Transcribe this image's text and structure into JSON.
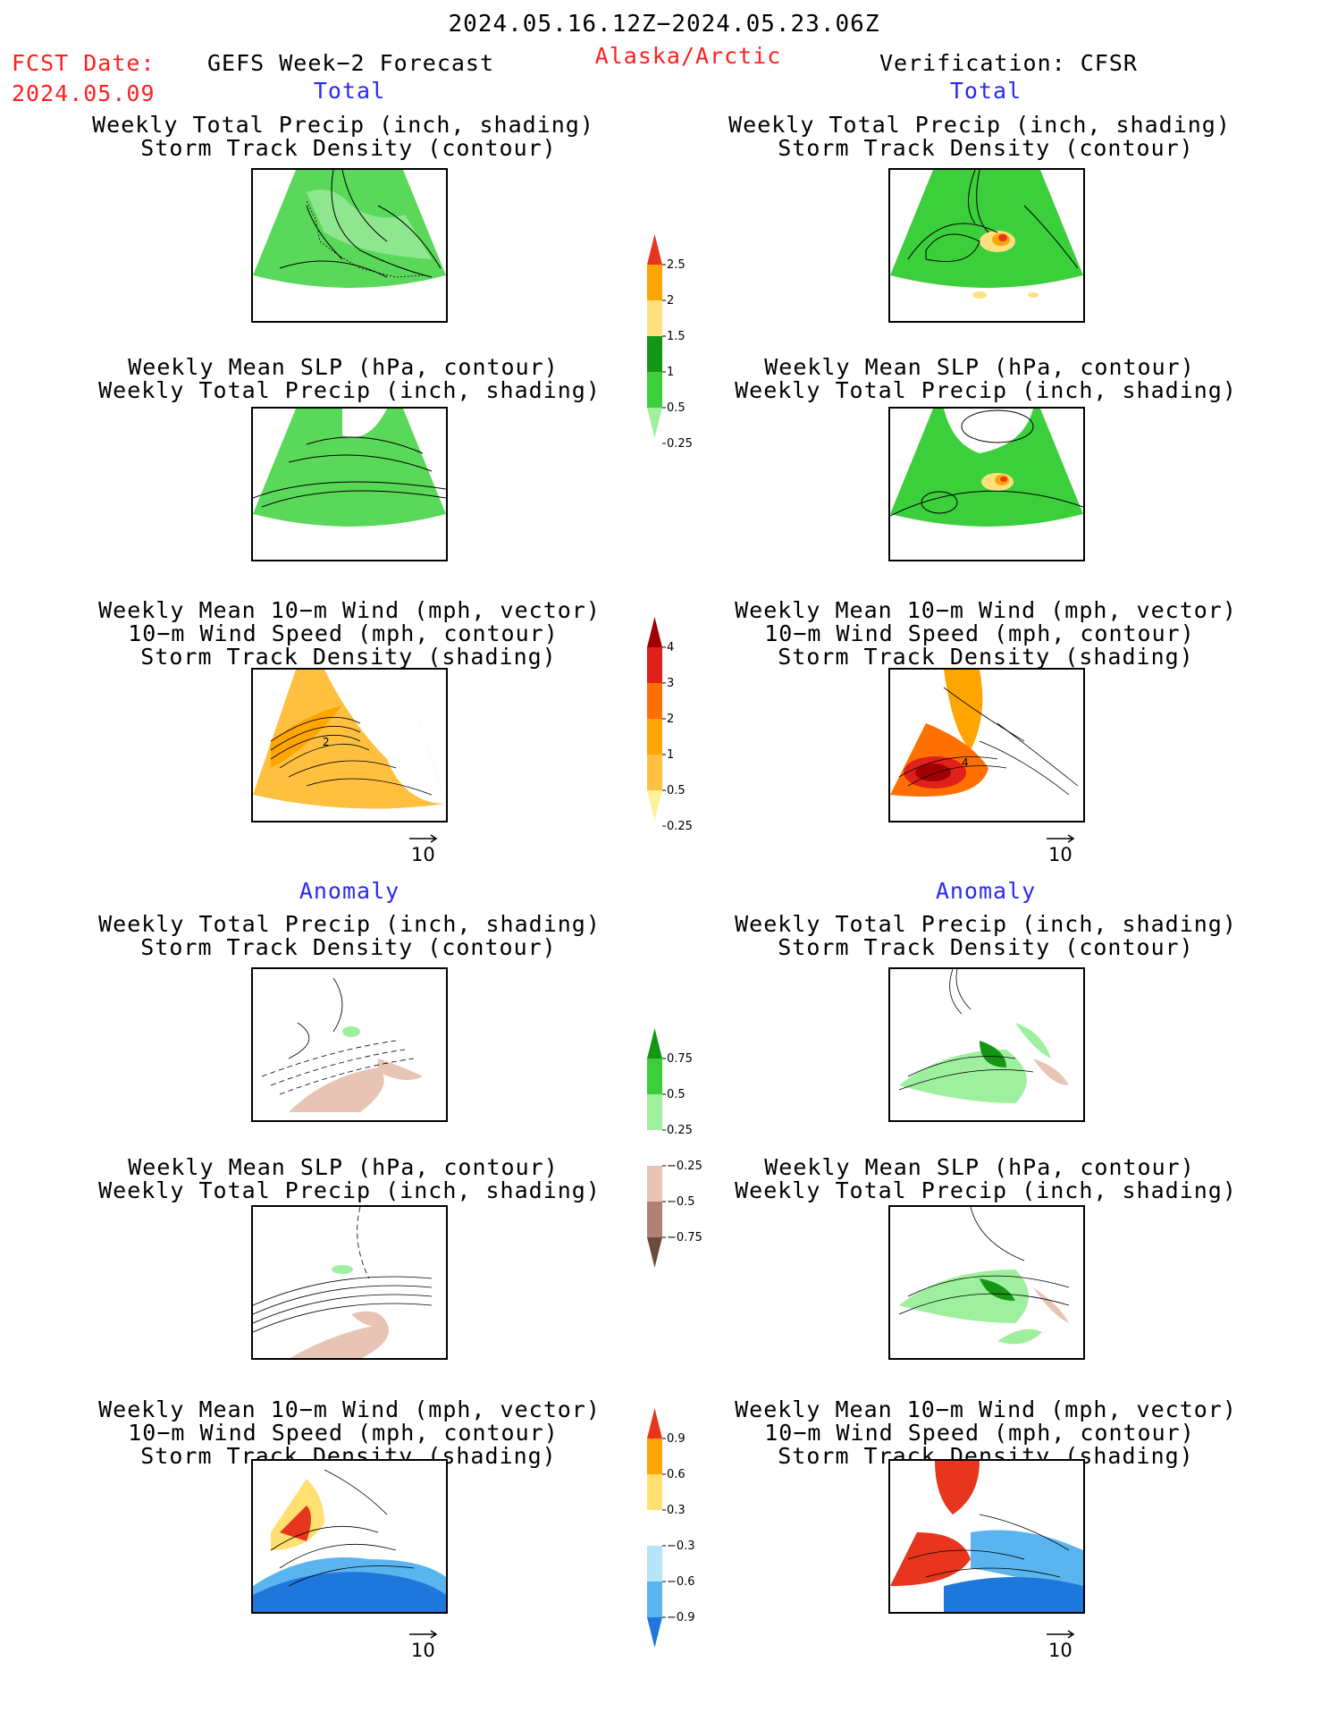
{
  "header": {
    "valid_period": "2024.05.16.12Z−2024.05.23.06Z",
    "fcst_date_label": "FCST Date:",
    "fcst_date_value": "2024.05.09",
    "model_title": "GEFS Week−2 Forecast",
    "region": "Alaska/Arctic",
    "verification": "Verification: CFSR"
  },
  "sections": {
    "total_left": "Total",
    "total_right": "Total",
    "anomaly_left": "Anomaly",
    "anomaly_right": "Anomaly"
  },
  "titles": {
    "precip_storm": [
      "Weekly Total Precip (inch, shading)",
      "Storm Track Density (contour)"
    ],
    "slp_precip": [
      "Weekly Mean SLP (hPa, contour)",
      "Weekly Total Precip (inch, shading)"
    ],
    "wind_storm": [
      "Weekly Mean 10−m Wind (mph, vector)",
      "10−m Wind Speed (mph, contour)",
      "Storm Track Density (shading)"
    ]
  },
  "vector_reference": "10",
  "map_contour_labels": {
    "total_wind_left": "2",
    "total_wind_right": "4"
  },
  "colorbars": {
    "precip_total": {
      "labels": [
        "2.5",
        "2",
        "1.5",
        "1",
        "0.5",
        "0.25"
      ],
      "colors": [
        "#e8351e",
        "#ffa500",
        "#ffe080",
        "#149614",
        "#3ccf3c",
        "#9ef09e"
      ]
    },
    "storm_total": {
      "labels": [
        "4",
        "3",
        "2",
        "1",
        "0.5",
        "0.25"
      ],
      "colors": [
        "#a00000",
        "#e0201a",
        "#ff7000",
        "#ffa500",
        "#ffc040",
        "#fff09a"
      ]
    },
    "precip_anom": {
      "labels": [
        "0.75",
        "0.5",
        "0.25",
        "−0.25",
        "−0.5",
        "−0.75"
      ],
      "colors": [
        "#149614",
        "#3ccf3c",
        "#9ef09e",
        "#ffffff",
        "#e8c4b4",
        "#b08070",
        "#6e4a3c"
      ]
    },
    "storm_anom": {
      "labels": [
        "0.9",
        "0.6",
        "0.3",
        "−0.3",
        "−0.6",
        "−0.9"
      ],
      "colors": [
        "#e8351e",
        "#ffa500",
        "#ffe070",
        "#ffffff",
        "#b4e6f8",
        "#5ab4f0",
        "#1e78dc"
      ]
    }
  }
}
